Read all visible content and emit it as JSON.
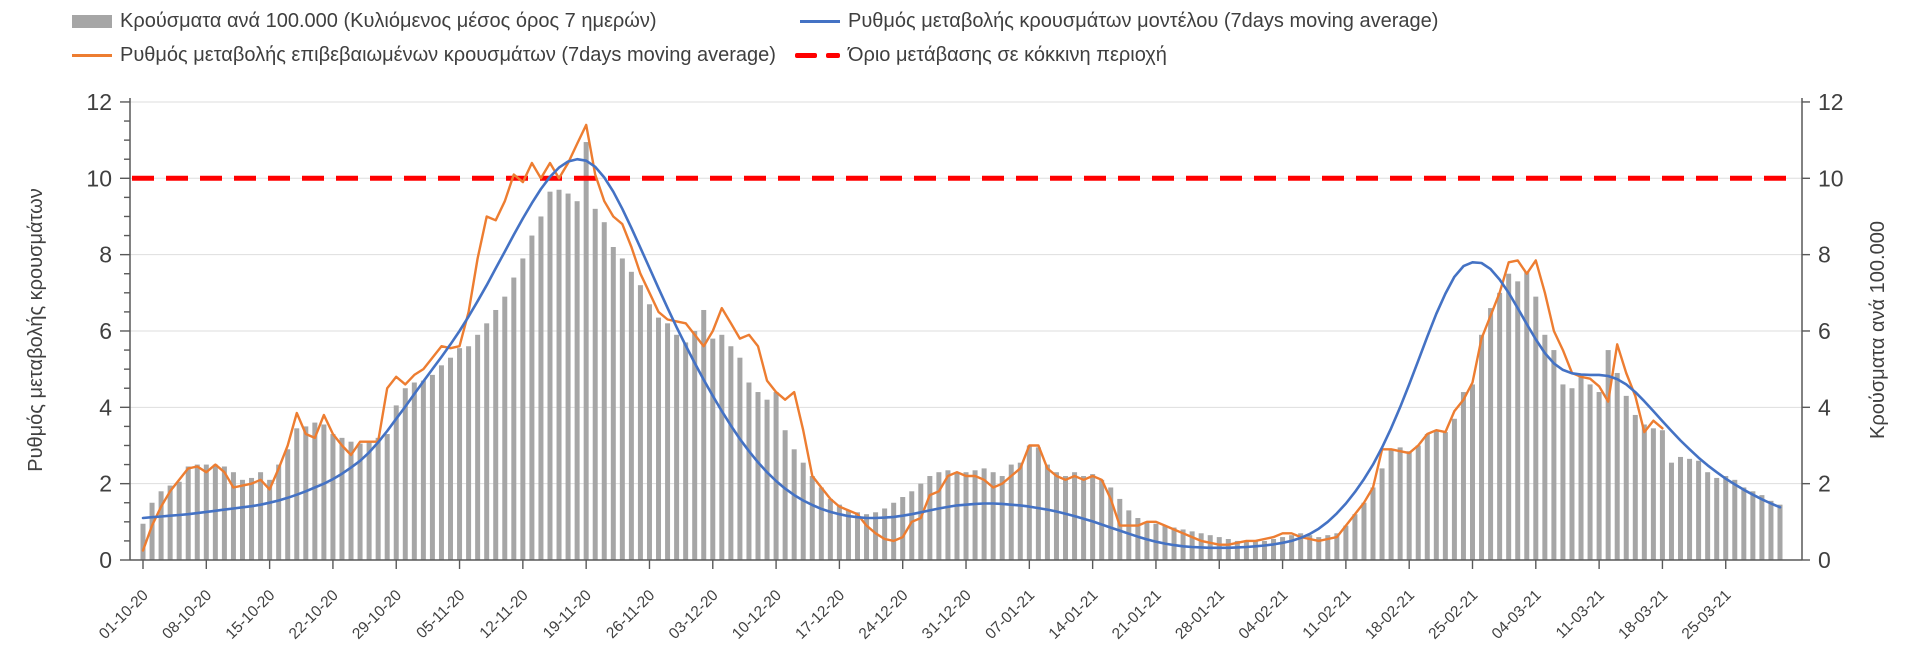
{
  "legend": {
    "items": [
      {
        "label": "Κρούσματα ανά 100.000 (Κυλιόμενος μέσος όρος 7 ημερών)",
        "swatch": "bar",
        "color": "#a6a6a6"
      },
      {
        "label": "Ρυθμός μεταβολής κρουσμάτων μοντέλου (7days moving average)",
        "swatch": "line",
        "color": "#4472c4"
      },
      {
        "label": "Ρυθμός μεταβολής επιβεβαιωμένων κρουσμάτων (7days moving average)",
        "swatch": "line",
        "color": "#ed7d31"
      },
      {
        "label": "Όριο μετάβασης σε κόκκινη περιοχή",
        "swatch": "dashed",
        "color": "#ff0000"
      }
    ]
  },
  "chart_data": {
    "type": "bar+line combo, daily time series 01-10-20 to 31-03-21",
    "ylabel_left": "Ρυθμός μεταβολής κρουσμάτων",
    "ylabel_right": "Κρούσματα ανά 100.000",
    "ylim": [
      0,
      12
    ],
    "y_ticks": [
      0,
      2,
      4,
      6,
      8,
      10,
      12
    ],
    "y_minor_step": 0.5,
    "grid": "horizontal major, light gray",
    "legend_position": "top, two rows two columns",
    "threshold": {
      "name": "Όριο μετάβασης σε κόκκινη περιοχή",
      "value": 10,
      "color": "#ff0000",
      "style": "thick dashed"
    },
    "x_tick_labels": [
      "01-10-20",
      "08-10-20",
      "15-10-20",
      "22-10-20",
      "29-10-20",
      "05-11-20",
      "12-11-20",
      "19-11-20",
      "26-11-20",
      "03-12-20",
      "10-12-20",
      "17-12-20",
      "24-12-20",
      "31-12-20",
      "07-01-21",
      "14-01-21",
      "21-01-21",
      "28-01-21",
      "04-02-21",
      "11-02-21",
      "18-02-21",
      "25-02-21",
      "04-03-21",
      "11-03-21",
      "18-03-21",
      "25-03-21"
    ],
    "x_tick_every_days": 7,
    "series": [
      {
        "name": "Κρούσματα ανά 100.000 (Κυλιόμενος μέσος όρος 7 ημερών)",
        "type": "bar",
        "color": "#a6a6a6",
        "values": [
          0.95,
          1.5,
          1.8,
          1.95,
          2.05,
          2.45,
          2.5,
          2.5,
          2.5,
          2.45,
          2.3,
          2.1,
          2.15,
          2.3,
          2.1,
          2.5,
          2.9,
          3.45,
          3.5,
          3.6,
          3.55,
          3.3,
          3.2,
          3.1,
          3.05,
          3.1,
          3.2,
          3.3,
          4.05,
          4.5,
          4.65,
          4.7,
          4.85,
          5.1,
          5.3,
          5.55,
          5.6,
          5.9,
          6.2,
          6.55,
          6.9,
          7.4,
          7.9,
          8.5,
          9.0,
          9.65,
          9.7,
          9.6,
          9.4,
          10.95,
          9.2,
          8.85,
          8.2,
          7.9,
          7.55,
          7.2,
          6.7,
          6.35,
          6.2,
          5.9,
          5.7,
          6.0,
          6.55,
          5.8,
          5.9,
          5.6,
          5.3,
          4.65,
          4.4,
          4.2,
          4.4,
          3.4,
          2.9,
          2.55,
          2.2,
          1.9,
          1.6,
          1.45,
          1.3,
          1.25,
          1.2,
          1.25,
          1.35,
          1.5,
          1.65,
          1.8,
          2.0,
          2.2,
          2.3,
          2.35,
          2.3,
          2.3,
          2.35,
          2.4,
          2.3,
          2.2,
          2.5,
          2.55,
          3.0,
          2.95,
          2.5,
          2.3,
          2.2,
          2.3,
          2.2,
          2.25,
          2.1,
          1.9,
          1.6,
          1.3,
          1.1,
          1.0,
          0.95,
          0.9,
          0.85,
          0.8,
          0.75,
          0.7,
          0.65,
          0.6,
          0.55,
          0.5,
          0.5,
          0.5,
          0.5,
          0.55,
          0.6,
          0.65,
          0.7,
          0.65,
          0.6,
          0.65,
          0.7,
          0.9,
          1.2,
          1.5,
          1.9,
          2.4,
          2.9,
          2.95,
          2.85,
          3.0,
          3.3,
          3.4,
          3.35,
          3.7,
          4.4,
          4.6,
          5.9,
          6.6,
          7.0,
          7.5,
          7.3,
          7.55,
          6.9,
          5.9,
          5.5,
          4.6,
          4.5,
          4.85,
          4.6,
          4.4,
          5.5,
          4.9,
          4.3,
          3.8,
          3.55,
          3.45,
          3.4,
          2.55,
          2.7,
          2.65,
          2.6,
          2.3,
          2.15,
          2.2,
          2.1,
          1.9,
          1.8,
          1.7,
          1.55,
          1.45
        ]
      },
      {
        "name": "Ρυθμός μεταβολής επιβεβαιωμένων κρουσμάτων (7days moving average)",
        "type": "line",
        "color": "#ed7d31",
        "values": [
          0.25,
          0.9,
          1.4,
          1.8,
          2.1,
          2.4,
          2.45,
          2.3,
          2.5,
          2.3,
          1.9,
          1.95,
          2.0,
          2.1,
          1.85,
          2.4,
          3.0,
          3.85,
          3.3,
          3.2,
          3.8,
          3.3,
          3.0,
          2.75,
          3.1,
          3.1,
          3.1,
          4.5,
          4.8,
          4.6,
          4.85,
          5.0,
          5.3,
          5.6,
          5.55,
          5.6,
          6.5,
          7.9,
          9.0,
          8.9,
          9.4,
          10.1,
          9.9,
          10.4,
          10.0,
          10.4,
          10.0,
          10.4,
          10.9,
          11.4,
          10.1,
          9.4,
          9.0,
          8.8,
          8.2,
          7.5,
          7.0,
          6.5,
          6.3,
          6.25,
          6.2,
          5.9,
          5.6,
          6.0,
          6.6,
          6.2,
          5.8,
          5.9,
          5.6,
          4.7,
          4.4,
          4.2,
          4.4,
          3.4,
          2.2,
          1.9,
          1.6,
          1.4,
          1.3,
          1.2,
          0.9,
          0.7,
          0.55,
          0.5,
          0.6,
          1.0,
          1.1,
          1.7,
          1.8,
          2.2,
          2.3,
          2.2,
          2.2,
          2.1,
          1.9,
          2.0,
          2.2,
          2.4,
          3.0,
          3.0,
          2.4,
          2.2,
          2.1,
          2.2,
          2.1,
          2.2,
          2.1,
          1.6,
          0.9,
          0.9,
          0.9,
          1.0,
          1.0,
          0.9,
          0.8,
          0.7,
          0.6,
          0.5,
          0.45,
          0.4,
          0.4,
          0.45,
          0.5,
          0.5,
          0.55,
          0.6,
          0.7,
          0.7,
          0.6,
          0.55,
          0.5,
          0.55,
          0.6,
          0.9,
          1.2,
          1.5,
          1.9,
          2.9,
          2.9,
          2.85,
          2.8,
          3.0,
          3.3,
          3.4,
          3.35,
          3.9,
          4.2,
          4.65,
          5.8,
          6.4,
          7.0,
          7.8,
          7.85,
          7.5,
          7.85,
          7.0,
          6.0,
          5.5,
          4.9,
          4.8,
          4.75,
          4.55,
          4.15,
          5.65,
          4.9,
          4.3,
          3.35,
          3.65,
          3.45,
          null,
          null,
          null,
          null,
          null,
          null,
          null,
          null,
          null,
          null,
          null,
          null,
          null
        ]
      },
      {
        "name": "Ρυθμός μεταβολής κρουσμάτων μοντέλου (7days moving average)",
        "type": "line",
        "color": "#4472c4",
        "values": [
          1.1,
          1.12,
          1.14,
          1.16,
          1.18,
          1.2,
          1.23,
          1.26,
          1.29,
          1.32,
          1.35,
          1.38,
          1.41,
          1.45,
          1.5,
          1.56,
          1.63,
          1.71,
          1.8,
          1.9,
          2.0,
          2.12,
          2.26,
          2.42,
          2.6,
          2.82,
          3.08,
          3.38,
          3.7,
          4.02,
          4.35,
          4.68,
          5.0,
          5.32,
          5.65,
          6.0,
          6.38,
          6.78,
          7.2,
          7.64,
          8.08,
          8.52,
          8.95,
          9.35,
          9.72,
          10.04,
          10.28,
          10.44,
          10.5,
          10.46,
          10.3,
          10.02,
          9.65,
          9.2,
          8.7,
          8.18,
          7.65,
          7.12,
          6.6,
          6.1,
          5.62,
          5.16,
          4.72,
          4.3,
          3.9,
          3.52,
          3.17,
          2.85,
          2.56,
          2.3,
          2.07,
          1.87,
          1.7,
          1.56,
          1.44,
          1.34,
          1.26,
          1.2,
          1.15,
          1.12,
          1.1,
          1.1,
          1.11,
          1.13,
          1.16,
          1.2,
          1.25,
          1.3,
          1.35,
          1.39,
          1.43,
          1.45,
          1.47,
          1.48,
          1.48,
          1.47,
          1.45,
          1.43,
          1.4,
          1.36,
          1.32,
          1.27,
          1.21,
          1.15,
          1.08,
          1.01,
          0.93,
          0.85,
          0.77,
          0.69,
          0.61,
          0.54,
          0.48,
          0.43,
          0.39,
          0.36,
          0.34,
          0.33,
          0.32,
          0.32,
          0.32,
          0.33,
          0.34,
          0.36,
          0.38,
          0.41,
          0.45,
          0.5,
          0.58,
          0.68,
          0.82,
          1.0,
          1.22,
          1.48,
          1.78,
          2.12,
          2.5,
          2.95,
          3.45,
          4.0,
          4.6,
          5.22,
          5.85,
          6.45,
          6.98,
          7.42,
          7.7,
          7.8,
          7.78,
          7.62,
          7.35,
          7.0,
          6.6,
          6.18,
          5.78,
          5.42,
          5.15,
          4.98,
          4.89,
          4.86,
          4.85,
          4.85,
          4.82,
          4.74,
          4.6,
          4.4,
          4.16,
          3.9,
          3.64,
          3.38,
          3.13,
          2.9,
          2.68,
          2.48,
          2.3,
          2.13,
          1.98,
          1.84,
          1.71,
          1.59,
          1.48,
          1.38
        ]
      }
    ],
    "colors": {
      "bar": "#a6a6a6",
      "confirmed_line": "#ed7d31",
      "model_line": "#4472c4",
      "threshold": "#ff0000",
      "grid": "#dedede",
      "axis": "#595959",
      "text": "#404040"
    }
  }
}
